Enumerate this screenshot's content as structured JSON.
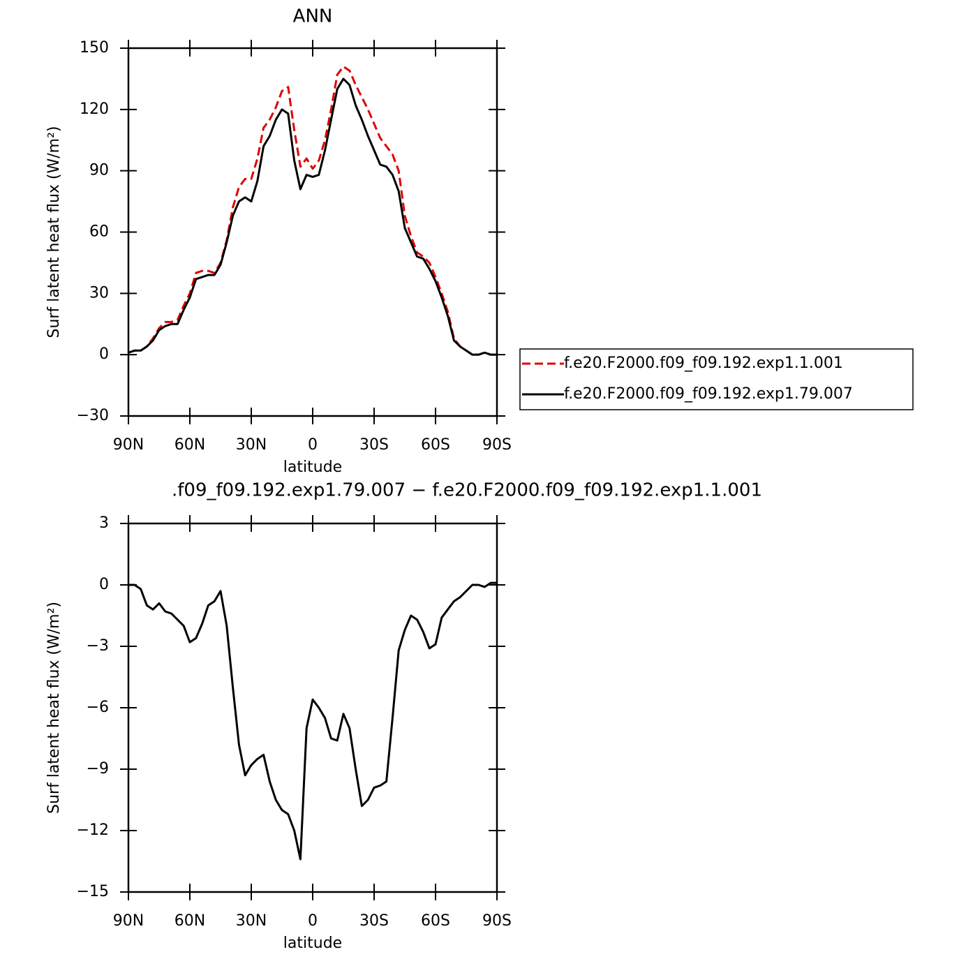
{
  "chart_data": [
    {
      "type": "line",
      "title": "ANN",
      "xlabel": "latitude",
      "ylabel": "Surf latent heat flux (W/m²)",
      "x": [
        90,
        87,
        84,
        81,
        78,
        75,
        72,
        69,
        66,
        63,
        60,
        57,
        54,
        51,
        48,
        45,
        42,
        39,
        36,
        33,
        30,
        27,
        24,
        21,
        18,
        15,
        12,
        9,
        6,
        3,
        0,
        -3,
        -6,
        -9,
        -12,
        -15,
        -18,
        -21,
        -24,
        -27,
        -30,
        -33,
        -36,
        -39,
        -42,
        -45,
        -48,
        -51,
        -54,
        -57,
        -60,
        -63,
        -66,
        -69,
        -72,
        -75,
        -78,
        -81,
        -84,
        -87,
        -90
      ],
      "xlim": [
        90,
        -90
      ],
      "xticks": [
        {
          "value": 90,
          "label": "90N"
        },
        {
          "value": 60,
          "label": "60N"
        },
        {
          "value": 30,
          "label": "30N"
        },
        0,
        {
          "value": -30,
          "label": "30S"
        },
        {
          "value": -60,
          "label": "60S"
        },
        {
          "value": -90,
          "label": "90S"
        }
      ],
      "ylim": [
        -30,
        150
      ],
      "yticks": [
        {
          "value": -30,
          "label": "−30"
        },
        0,
        30,
        60,
        90,
        120,
        150
      ],
      "legend": "right",
      "series": [
        {
          "name": "f.e20.F2000.f09_f09.192.exp1.1.001",
          "color": "#e00000",
          "dash": true,
          "values": [
            1,
            2,
            2,
            4,
            8,
            13,
            16,
            16,
            17,
            24,
            30,
            40,
            41,
            41,
            40,
            45,
            56,
            72,
            82,
            86,
            86,
            96,
            111,
            115,
            121,
            129,
            131,
            110,
            92,
            96,
            91,
            95,
            105,
            120,
            137,
            141,
            139,
            132,
            126,
            120,
            113,
            106,
            102,
            98,
            90,
            68,
            58,
            50,
            48,
            45,
            38,
            30,
            21,
            8,
            4,
            2,
            0,
            0,
            1,
            0,
            0
          ]
        },
        {
          "name": "f.e20.F2000.f09_f09.192.exp1.79.007",
          "color": "#000000",
          "dash": false,
          "values": [
            1,
            2,
            2,
            4,
            7,
            12,
            14,
            15,
            15,
            22,
            28,
            37,
            38,
            39,
            39,
            44,
            55,
            68,
            75,
            77,
            75,
            85,
            102,
            107,
            115,
            120,
            118,
            95,
            81,
            88,
            87,
            88,
            100,
            115,
            130,
            135,
            132,
            122,
            115,
            107,
            100,
            93,
            92,
            88,
            80,
            62,
            55,
            48,
            47,
            42,
            36,
            28,
            19,
            7,
            4,
            2,
            0,
            0,
            1,
            0,
            0
          ]
        }
      ]
    },
    {
      "type": "line",
      "title": ".f09_f09.192.exp1.79.007 − f.e20.F2000.f09_f09.192.exp1.1.001",
      "xlabel": "latitude",
      "ylabel": "Surf latent heat flux (W/m²)",
      "x": [
        90,
        87,
        84,
        81,
        78,
        75,
        72,
        69,
        66,
        63,
        60,
        57,
        54,
        51,
        48,
        45,
        42,
        39,
        36,
        33,
        30,
        27,
        24,
        21,
        18,
        15,
        12,
        9,
        6,
        3,
        0,
        -3,
        -6,
        -9,
        -12,
        -15,
        -18,
        -21,
        -24,
        -27,
        -30,
        -33,
        -36,
        -39,
        -42,
        -45,
        -48,
        -51,
        -54,
        -57,
        -60,
        -63,
        -66,
        -69,
        -72,
        -75,
        -78,
        -81,
        -84,
        -87,
        -90
      ],
      "xlim": [
        90,
        -90
      ],
      "xticks": [
        {
          "value": 90,
          "label": "90N"
        },
        {
          "value": 60,
          "label": "60N"
        },
        {
          "value": 30,
          "label": "30N"
        },
        0,
        {
          "value": -30,
          "label": "30S"
        },
        {
          "value": -60,
          "label": "60S"
        },
        {
          "value": -90,
          "label": "90S"
        }
      ],
      "ylim": [
        -15,
        3
      ],
      "yticks": [
        {
          "value": -15,
          "label": "−15"
        },
        {
          "value": -12,
          "label": "−12"
        },
        {
          "value": -9,
          "label": "−9"
        },
        {
          "value": -6,
          "label": "−6"
        },
        {
          "value": -3,
          "label": "−3"
        },
        0,
        3
      ],
      "series": [
        {
          "color": "#000000",
          "dash": false,
          "values": [
            0,
            0,
            -0.2,
            -1.0,
            -1.2,
            -0.9,
            -1.3,
            -1.4,
            -1.7,
            -2.0,
            -2.8,
            -2.6,
            -1.9,
            -1.0,
            -0.8,
            -0.3,
            -2.0,
            -5.0,
            -7.8,
            -9.3,
            -8.8,
            -8.5,
            -8.3,
            -9.6,
            -10.5,
            -11.0,
            -11.2,
            -12.0,
            -13.4,
            -7.0,
            -5.6,
            -6.0,
            -6.5,
            -7.5,
            -7.6,
            -6.3,
            -7.0,
            -9.0,
            -10.8,
            -10.5,
            -9.9,
            -9.8,
            -9.6,
            -6.5,
            -3.2,
            -2.2,
            -1.5,
            -1.7,
            -2.3,
            -3.1,
            -2.9,
            -1.6,
            -1.2,
            -0.8,
            -0.6,
            -0.3,
            0,
            0,
            -0.1,
            0.1,
            0.1
          ]
        }
      ]
    }
  ]
}
